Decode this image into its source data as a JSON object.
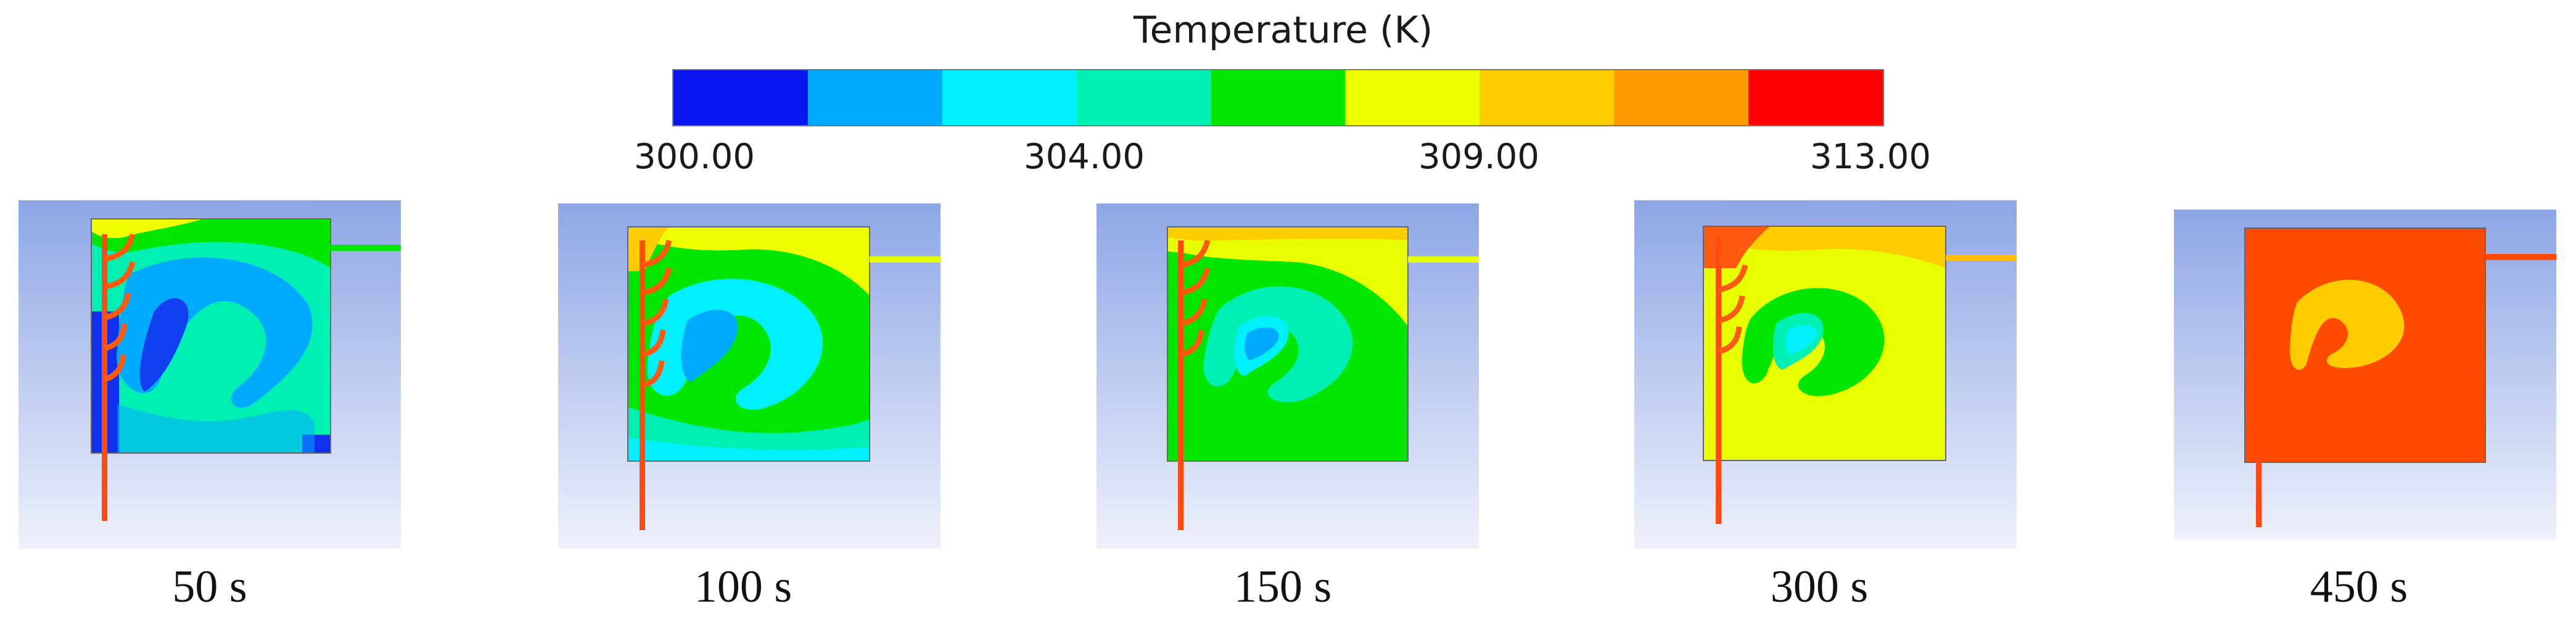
{
  "legend": {
    "title": "Temperature (K)",
    "colors": [
      "#0a14f0",
      "#00aaff",
      "#00f0ff",
      "#00f0b4",
      "#00e600",
      "#f0ff00",
      "#ffcc00",
      "#ff9a00",
      "#ff0000"
    ],
    "ticks": [
      "300.00",
      "304.00",
      "309.00",
      "313.00"
    ]
  },
  "panels": [
    {
      "time": "50 s"
    },
    {
      "time": "100 s"
    },
    {
      "time": "150 s"
    },
    {
      "time": "300 s"
    },
    {
      "time": "450 s"
    }
  ]
}
